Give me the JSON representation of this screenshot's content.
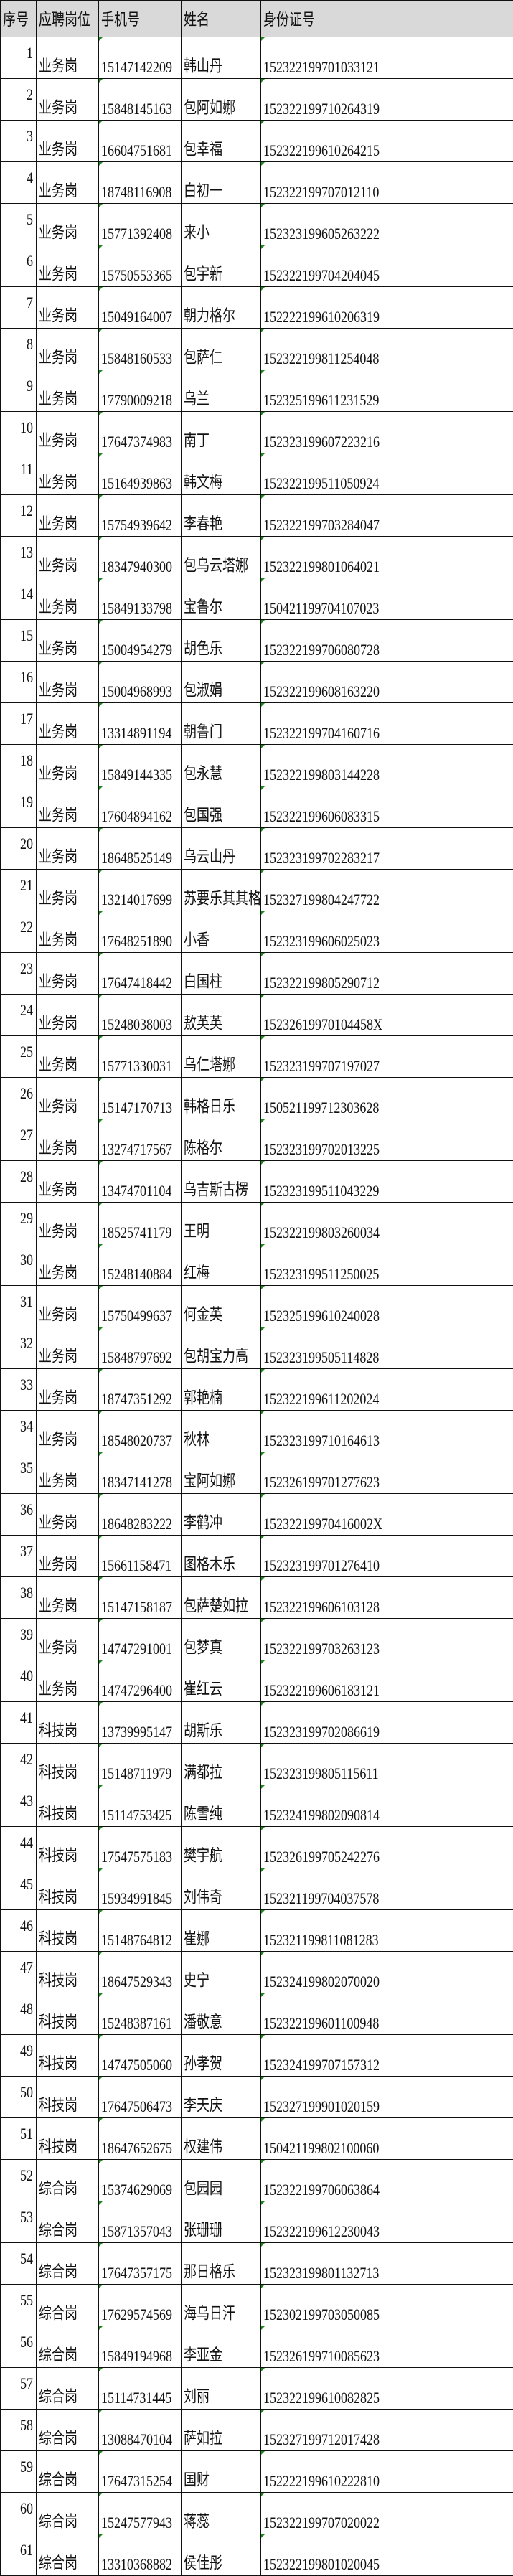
{
  "headers": [
    "序号",
    "应聘岗位",
    "手机号",
    "姓名",
    "身份证号"
  ],
  "colors": {
    "header_bg": "#d9d9d9",
    "number_text_marker": "#1a8a1a"
  },
  "rows": [
    [
      "1",
      "业务岗",
      "15147142209",
      "韩山丹",
      "152322199701033121"
    ],
    [
      "2",
      "业务岗",
      "15848145163",
      "包阿如娜",
      "152322199710264319"
    ],
    [
      "3",
      "业务岗",
      "16604751681",
      "包幸福",
      "152322199610264215"
    ],
    [
      "4",
      "业务岗",
      "18748116908",
      "白初一",
      "152322199707012110"
    ],
    [
      "5",
      "业务岗",
      "15771392408",
      "来小",
      "152323199605263222"
    ],
    [
      "6",
      "业务岗",
      "15750553365",
      "包宇新",
      "152322199704204045"
    ],
    [
      "7",
      "业务岗",
      "15049164007",
      "朝力格尔",
      "152222199610206319"
    ],
    [
      "8",
      "业务岗",
      "15848160533",
      "包萨仁",
      "152322199811254048"
    ],
    [
      "9",
      "业务岗",
      "17790009218",
      "乌兰",
      "152325199611231529"
    ],
    [
      "10",
      "业务岗",
      "17647374983",
      "南丁",
      "152323199607223216"
    ],
    [
      "11",
      "业务岗",
      "15164939863",
      "韩文梅",
      "152322199511050924"
    ],
    [
      "12",
      "业务岗",
      "15754939642",
      "李春艳",
      "152322199703284047"
    ],
    [
      "13",
      "业务岗",
      "18347940300",
      "包乌云塔娜",
      "152322199801064021"
    ],
    [
      "14",
      "业务岗",
      "15849133798",
      "宝鲁尔",
      "150421199704107023"
    ],
    [
      "15",
      "业务岗",
      "15004954279",
      "胡色乐",
      "152322199706080728"
    ],
    [
      "16",
      "业务岗",
      "15004968993",
      "包淑娟",
      "152322199608163220"
    ],
    [
      "17",
      "业务岗",
      "13314891194",
      "朝鲁门",
      "152322199704160716"
    ],
    [
      "18",
      "业务岗",
      "15849144335",
      "包永慧",
      "152322199803144228"
    ],
    [
      "19",
      "业务岗",
      "17604894162",
      "包国强",
      "152322199606083315"
    ],
    [
      "20",
      "业务岗",
      "18648525149",
      "乌云山丹",
      "152323199702283217"
    ],
    [
      "21",
      "业务岗",
      "13214017699",
      "苏要乐其其格",
      "152327199804247722"
    ],
    [
      "22",
      "业务岗",
      "17648251890",
      "小香",
      "152323199606025023"
    ],
    [
      "23",
      "业务岗",
      "17647418442",
      "白国柱",
      "152322199805290712"
    ],
    [
      "24",
      "业务岗",
      "15248038003",
      "敖英英",
      "15232619970104458X"
    ],
    [
      "25",
      "业务岗",
      "15771330031",
      "乌仁塔娜",
      "152323199707197027"
    ],
    [
      "26",
      "业务岗",
      "15147170713",
      "韩格日乐",
      "150521199712303628"
    ],
    [
      "27",
      "业务岗",
      "13274717567",
      "陈格尔",
      "152323199702013225"
    ],
    [
      "28",
      "业务岗",
      "13474701104",
      "乌吉斯古楞",
      "152323199511043229"
    ],
    [
      "29",
      "业务岗",
      "18525741179",
      "王明",
      "152322199803260034"
    ],
    [
      "30",
      "业务岗",
      "15248140884",
      "红梅",
      "152323199511250025"
    ],
    [
      "31",
      "业务岗",
      "15750499637",
      "何金英",
      "152325199610240028"
    ],
    [
      "32",
      "业务岗",
      "15848797692",
      "包胡宝力高",
      "152323199505114828"
    ],
    [
      "33",
      "业务岗",
      "18747351292",
      "郭艳楠",
      "152322199611202024"
    ],
    [
      "34",
      "业务岗",
      "18548020737",
      "秋林",
      "152323199710164613"
    ],
    [
      "35",
      "业务岗",
      "18347141278",
      "宝阿如娜",
      "152326199701277623"
    ],
    [
      "36",
      "业务岗",
      "18648283222",
      "李鹤冲",
      "15232219970416002X"
    ],
    [
      "37",
      "业务岗",
      "15661158471",
      "图格木乐",
      "152323199701276410"
    ],
    [
      "38",
      "业务岗",
      "15147158187",
      "包萨楚如拉",
      "152322199606103128"
    ],
    [
      "39",
      "业务岗",
      "14747291001",
      "包梦真",
      "152322199703263123"
    ],
    [
      "40",
      "业务岗",
      "14747296400",
      "崔红云",
      "152322199606183121"
    ],
    [
      "41",
      "科技岗",
      "13739995147",
      "胡斯乐",
      "152323199702086619"
    ],
    [
      "42",
      "科技岗",
      "15148711979",
      "满都拉",
      "152323199805115611"
    ],
    [
      "43",
      "科技岗",
      "15114753425",
      "陈雪纯",
      "152324199802090814"
    ],
    [
      "44",
      "科技岗",
      "17547575183",
      "樊宇航",
      "152326199705242276"
    ],
    [
      "45",
      "科技岗",
      "15934991845",
      "刘伟奇",
      "152321199704037578"
    ],
    [
      "46",
      "科技岗",
      "15148764812",
      "崔娜",
      "152321199811081283"
    ],
    [
      "47",
      "科技岗",
      "18647529343",
      "史宁",
      "152324199802070020"
    ],
    [
      "48",
      "科技岗",
      "15248387161",
      "潘敬意",
      "152322199601100948"
    ],
    [
      "49",
      "科技岗",
      "14747505060",
      "孙孝贺",
      "152324199707157312"
    ],
    [
      "50",
      "科技岗",
      "17647506473",
      "李天庆",
      "152327199901020159"
    ],
    [
      "51",
      "科技岗",
      "18647652675",
      "权建伟",
      "150421199802100060"
    ],
    [
      "52",
      "综合岗",
      "15374629069",
      "包园园",
      "152322199706063864"
    ],
    [
      "53",
      "综合岗",
      "15871357043",
      "张珊珊",
      "152322199612230043"
    ],
    [
      "54",
      "综合岗",
      "17647357175",
      "那日格乐",
      "152323199801132713"
    ],
    [
      "55",
      "综合岗",
      "17629574569",
      "海乌日汗",
      "152302199703050085"
    ],
    [
      "56",
      "综合岗",
      "15849194968",
      "李亚金",
      "152326199710085623"
    ],
    [
      "57",
      "综合岗",
      "15114731445",
      "刘丽",
      "152322199610082825"
    ],
    [
      "58",
      "综合岗",
      "13088470104",
      "萨如拉",
      "152327199712017428"
    ],
    [
      "59",
      "综合岗",
      "17647315254",
      "国财",
      "152222199610222810"
    ],
    [
      "60",
      "综合岗",
      "15247577943",
      "蒋蕊",
      "152322199707020022"
    ],
    [
      "61",
      "综合岗",
      "13310368882",
      "侯佳彤",
      "152322199801020045"
    ]
  ]
}
